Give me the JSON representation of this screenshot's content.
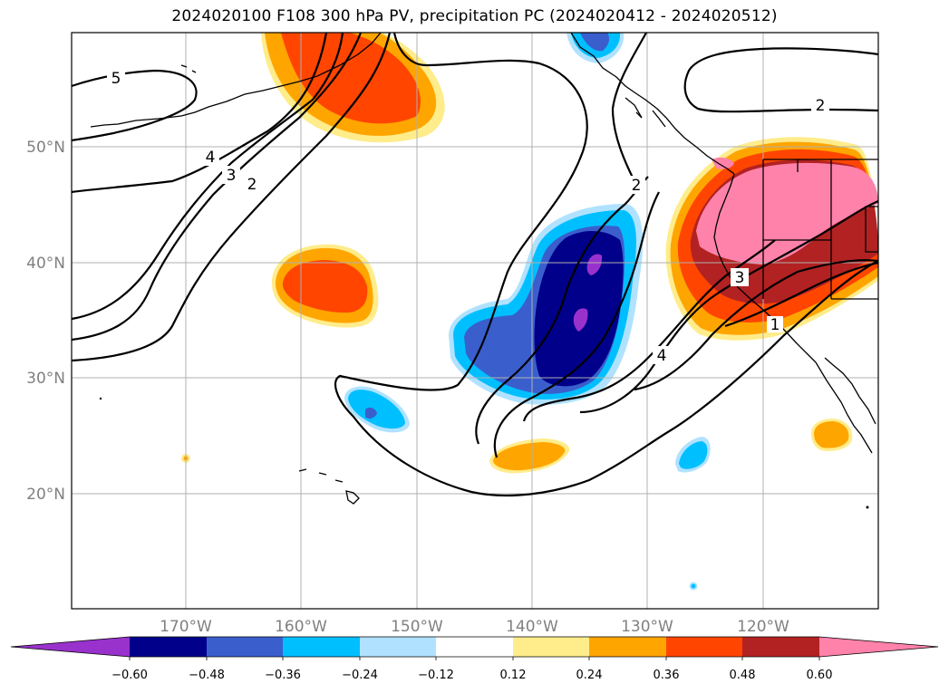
{
  "title": "2024020100 F108 300 hPa PV, precipitation PC (2024020412 - 2024020512)",
  "map": {
    "lat_labels": [
      "50°N",
      "40°N",
      "30°N",
      "20°N"
    ],
    "lon_labels": [
      "170°W",
      "160°W",
      "150°W",
      "140°W",
      "130°W",
      "120°W"
    ],
    "contour_labels": [
      "5",
      "4",
      "3",
      "2",
      "2",
      "2",
      "4",
      "3",
      "1"
    ]
  },
  "colorbar": {
    "colors": [
      "#9932CC",
      "#00008B",
      "#3A5FCD",
      "#00BFFF",
      "#B0E2FF",
      "#FFFFFF",
      "#FFEC8B",
      "#FFA500",
      "#FF4500",
      "#B22222",
      "#FF82AB"
    ],
    "tick_labels": [
      "−0.60",
      "−0.48",
      "−0.36",
      "−0.24",
      "−0.12",
      "0.12",
      "0.24",
      "0.36",
      "0.48",
      "0.60"
    ]
  }
}
